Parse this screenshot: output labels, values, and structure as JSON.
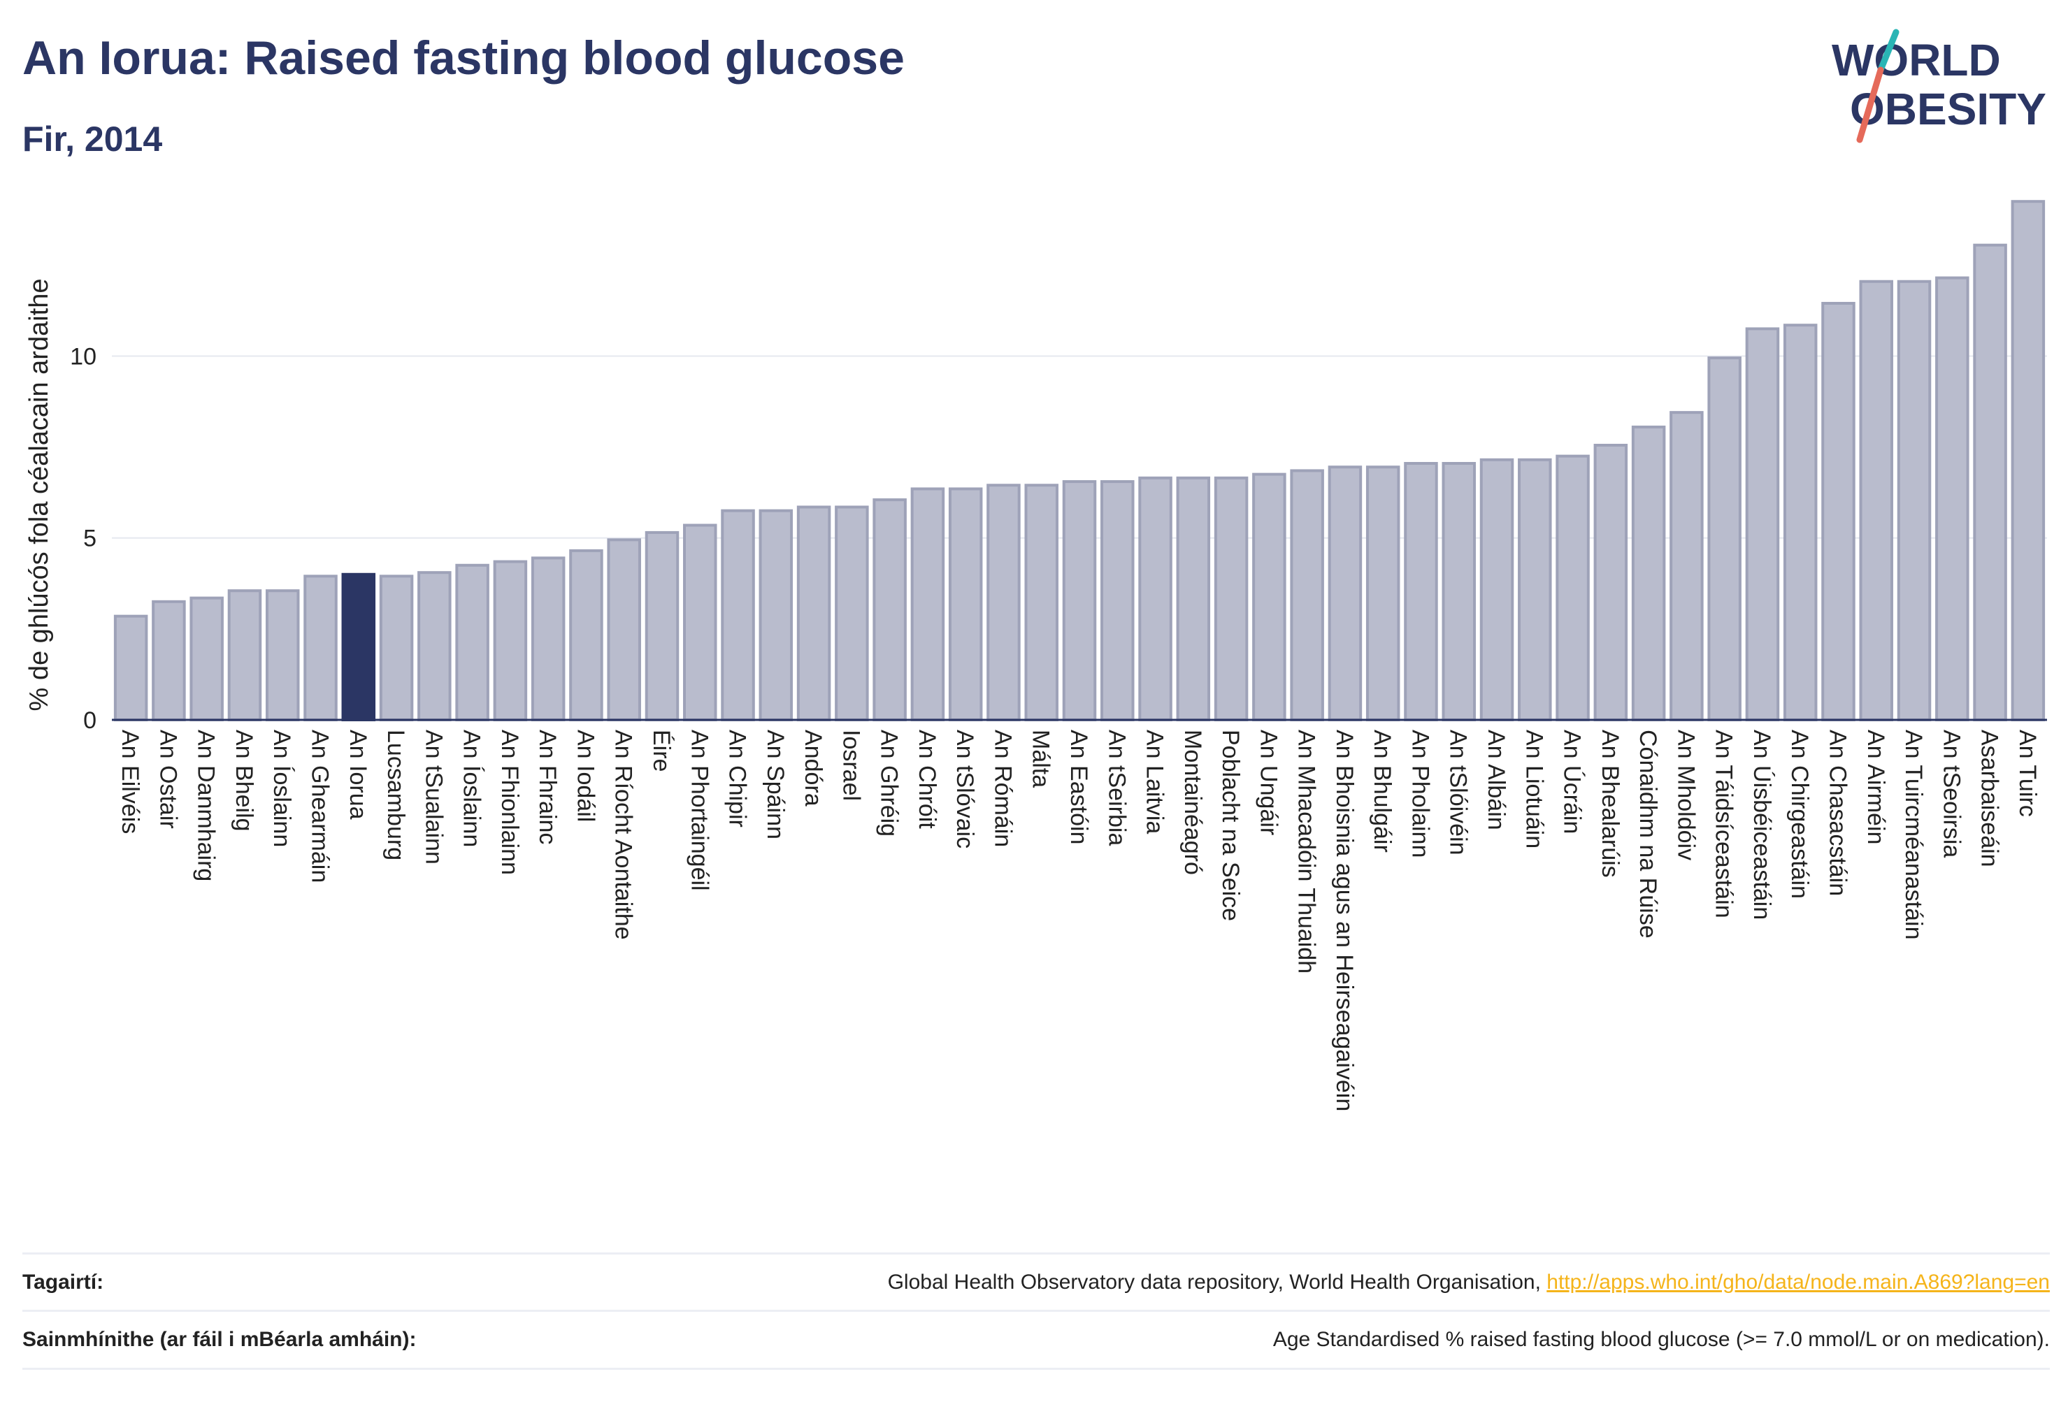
{
  "header": {
    "title": "An Iorua: Raised fasting blood glucose",
    "subtitle": "Fir, 2014"
  },
  "logo": {
    "line1": "WORLD",
    "line2": "OBESITY",
    "accent_colors": [
      "#2ab5b5",
      "#e56a5a"
    ]
  },
  "colors": {
    "bar": "#b9bccd",
    "bar_stroke": "#9ea2b8",
    "highlight": "#2b3664",
    "grid": "#e6e8ef",
    "axis": "#2b3664"
  },
  "chart_data": {
    "type": "bar",
    "ylabel": "% de ghlúcós fola céalacain ardaithe",
    "ylim": [
      0,
      14.6
    ],
    "yticks": [
      0,
      5,
      10
    ],
    "grid": true,
    "highlight_category": "An Iorua",
    "categories": [
      "An Eilvéis",
      "An Ostair",
      "An Danmhairg",
      "An Bheilg",
      "An Íoslainn",
      "An Ghearmáin",
      "An Iorua",
      "Lucsamburg",
      "An tSualainn",
      "An Íoslainn",
      "An Fhionlainn",
      "An Fhrainc",
      "An Iodáil",
      "An Ríocht Aontaithe",
      "Éire",
      "An Phortaingéil",
      "An Chipir",
      "An Spáinn",
      "Andóra",
      "Iosrael",
      "An Ghréig",
      "An Chróit",
      "An tSlóvaic",
      "An Rómáin",
      "Málta",
      "An Eastóin",
      "An tSeirbia",
      "An Laitvia",
      "Montainéagró",
      "Poblacht na Seice",
      "An Ungáir",
      "An Mhacadóin Thuaidh",
      "An Bhoisnia agus an Heirseagaivéin",
      "An Bhulgáir",
      "An Pholainn",
      "An tSlóivéin",
      "An Albáin",
      "An Liotuáin",
      "An Úcráin",
      "An Bhealarúis",
      "Cónaidhm na Rúise",
      "An Mholdóiv",
      "An Táidsíceastáin",
      "An Úisbéiceastáin",
      "An Chirgeastáin",
      "An Chasacstáin",
      "An Airméin",
      "An Tuircméanastáin",
      "An tSeoirsia",
      "Asarbaiseáin",
      "An Tuirc"
    ],
    "values": [
      2.85,
      3.25,
      3.35,
      3.55,
      3.55,
      3.95,
      4.0,
      3.95,
      4.05,
      4.25,
      4.35,
      4.45,
      4.65,
      4.95,
      5.15,
      5.35,
      5.75,
      5.75,
      5.85,
      5.85,
      6.05,
      6.35,
      6.35,
      6.45,
      6.45,
      6.55,
      6.55,
      6.65,
      6.65,
      6.65,
      6.75,
      6.85,
      6.95,
      6.95,
      7.05,
      7.05,
      7.15,
      7.15,
      7.25,
      7.55,
      8.05,
      8.45,
      9.95,
      10.75,
      10.85,
      11.45,
      12.05,
      12.05,
      12.15,
      13.05,
      14.25
    ]
  },
  "references": {
    "source_label": "Tagairtí:",
    "source_text": "Global Health Observatory data repository, World Health Organisation, ",
    "source_link": "http://apps.who.int/gho/data/node.main.A869?lang=en",
    "definition_label": "Sainmhínithe (ar fáil i mBéarla amháin):",
    "definition_text": "Age Standardised % raised fasting blood glucose (>= 7.0 mmol/L or on medication)."
  }
}
